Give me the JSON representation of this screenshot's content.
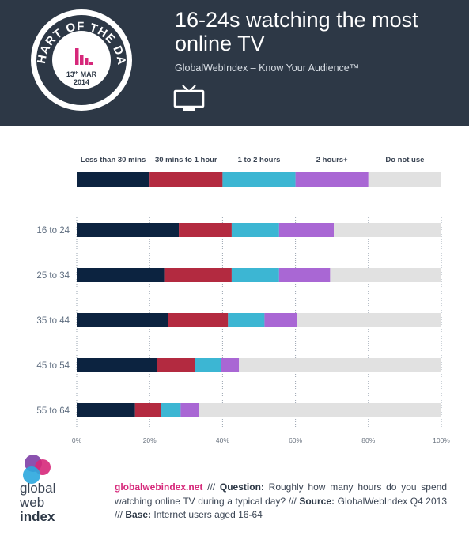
{
  "header": {
    "title": "16-24s watching the most online TV",
    "subtitle": "GlobalWebIndex – Know Your Audience™",
    "tv_icon": "tv-icon"
  },
  "badge": {
    "text": "CHART OF THE DAY",
    "date_day": "13",
    "date_suffix": "th",
    "date_month": "MAR",
    "date_year": "2014",
    "icon": "bar-chart-icon"
  },
  "chart_data": {
    "type": "bar",
    "orientation": "horizontal",
    "stacked": true,
    "categories": [
      "16 to 24",
      "25 to 34",
      "35 to 44",
      "45 to 54",
      "55 to 64"
    ],
    "series": [
      {
        "name": "Less than 30 mins",
        "color": "#0c2340",
        "values": [
          28,
          24,
          25,
          22,
          16
        ]
      },
      {
        "name": "30 mins to 1 hour",
        "color": "#b32a40",
        "values": [
          14.5,
          18.5,
          16.5,
          10.5,
          7
        ]
      },
      {
        "name": "1 to 2 hours",
        "color": "#3cb6d3",
        "values": [
          13,
          13,
          10,
          7,
          5.5
        ]
      },
      {
        "name": "2 hours+",
        "color": "#a967d4",
        "values": [
          15,
          14,
          9,
          5,
          5
        ]
      },
      {
        "name": "Do not use",
        "color": "#e1e1e1",
        "values": [
          29.5,
          30.5,
          39.5,
          55.5,
          66.5
        ]
      }
    ],
    "xticks": [
      "0%",
      "20%",
      "40%",
      "60%",
      "80%",
      "100%"
    ],
    "xlim": [
      0,
      100
    ],
    "legend_position": "top",
    "grid": "vertical dotted"
  },
  "footer": {
    "site": "globalwebindex.net",
    "sep1": " /// ",
    "question_label": "Question:",
    "question_text": " Roughly how many hours do you spend watching online TV during a typical day?",
    "sep2": " /// ",
    "source_label": "Source:",
    "source_text": " GlobalWebIndex Q4 2013",
    "sep3": " /// ",
    "base_label": "Base:",
    "base_text": " Internet users aged 16-64",
    "logo_line1": "global",
    "logo_line2": "web",
    "logo_line3": "index"
  }
}
